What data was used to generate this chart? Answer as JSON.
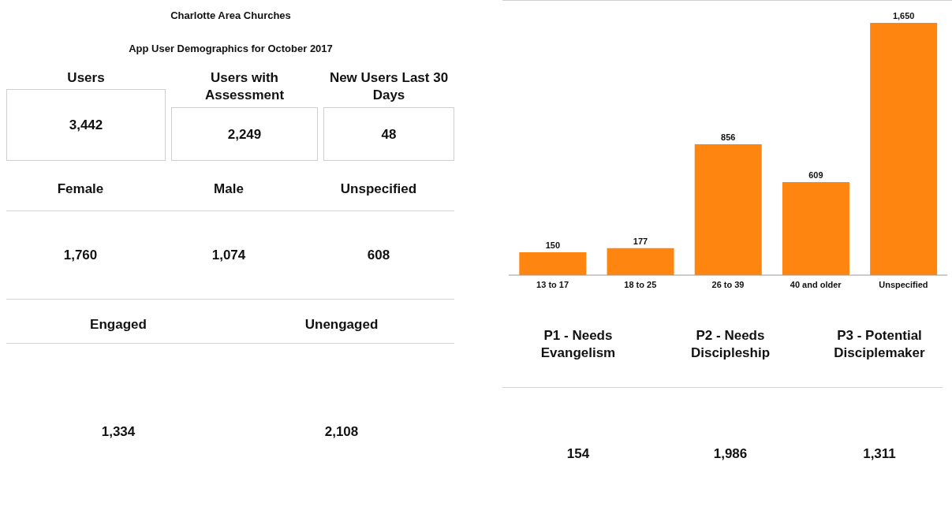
{
  "chart_data": [
    {
      "type": "other",
      "title": "Charlotte Area Churches",
      "subtitle": "App User Demographics for October 2017",
      "annotations": [
        "Users",
        "Users with Assessment",
        "New Users Last 30 Days",
        "3,442",
        "2,249",
        "48"
      ]
    },
    {
      "type": "bar",
      "categories": [
        "13 to 17",
        "18 to 25",
        "26 to 39",
        "40 and older",
        "Unspecified"
      ],
      "values": [
        150,
        177,
        856,
        609,
        1650
      ],
      "color": "#ff8511",
      "value_labels": [
        "150",
        "177",
        "856",
        "609",
        "1,650"
      ]
    },
    {
      "type": "other",
      "annotations": [
        "Female",
        "Male",
        "Unspecified",
        "1,760",
        "1,074",
        "608"
      ]
    },
    {
      "type": "other",
      "annotations": [
        "Engaged",
        "Unengaged",
        "1,334",
        "2,108"
      ]
    },
    {
      "type": "other",
      "annotations": [
        "P1 - Needs Evangelism",
        "P2 - Needs Discipleship",
        "P3 - Potential Disciplemaker",
        "154",
        "1,986",
        "1,311"
      ]
    }
  ]
}
